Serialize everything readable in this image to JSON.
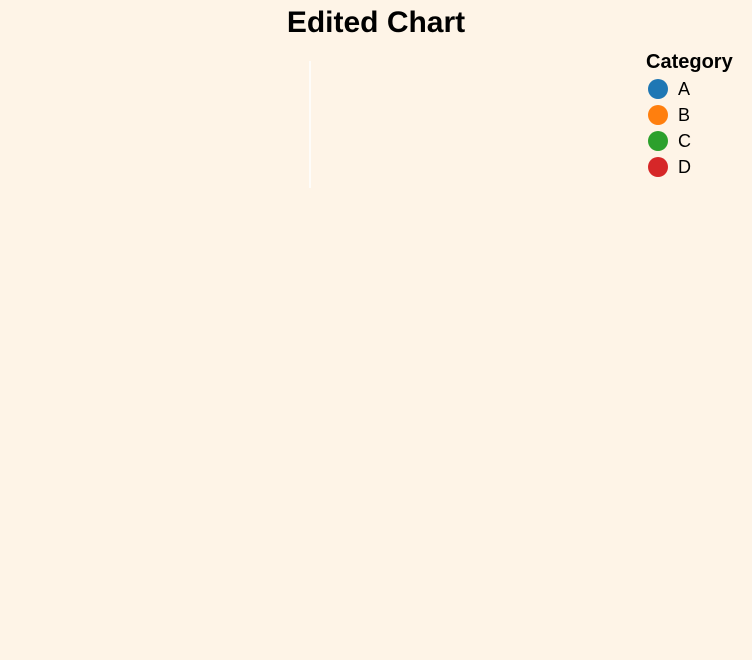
{
  "chart_data": {
    "type": "scatter",
    "title": "Edited Chart",
    "xlabel": "",
    "ylabel": "",
    "grid": false,
    "legend_placement": "top-right",
    "background_color": "#fef4e7",
    "legend": {
      "title": "Category",
      "items": [
        {
          "label": "A",
          "color": "#1f77b4"
        },
        {
          "label": "B",
          "color": "#ff7f0e"
        },
        {
          "label": "C",
          "color": "#2ca02c"
        },
        {
          "label": "D",
          "color": "#d62728"
        }
      ]
    },
    "series": []
  }
}
